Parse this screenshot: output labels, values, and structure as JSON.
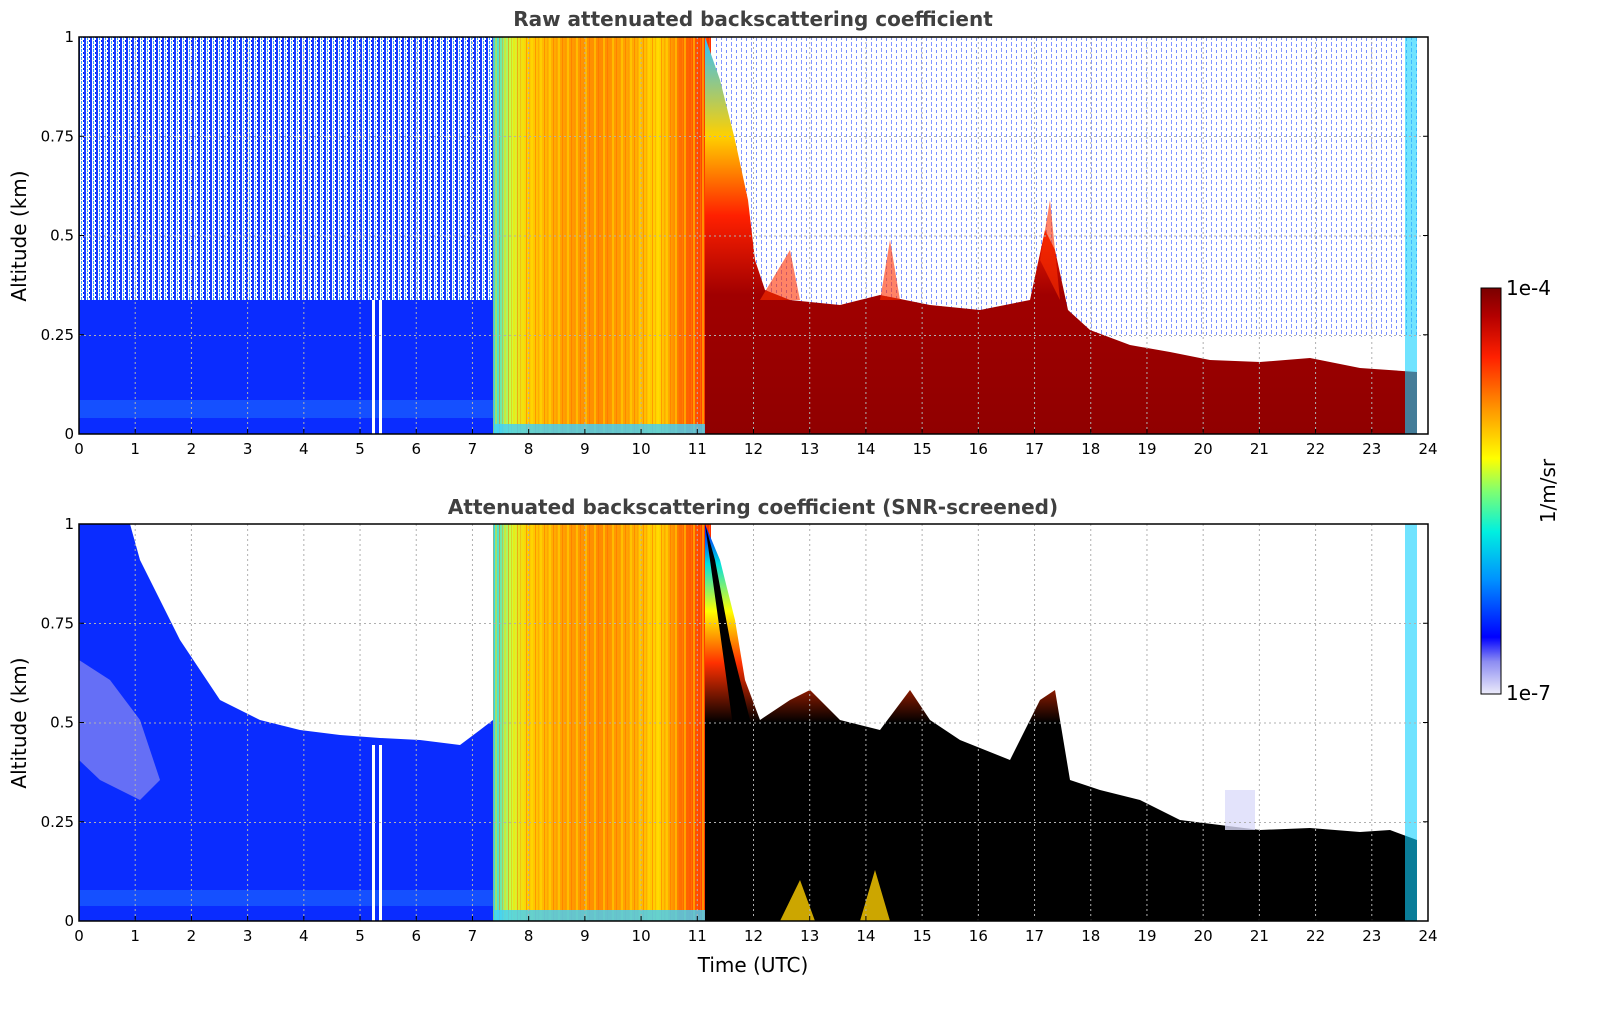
{
  "chart_data": [
    {
      "type": "heatmap",
      "title": "Raw attenuated backscattering coefficient",
      "xlabel": "",
      "ylabel": "Altitude (km)",
      "xlim": [
        0,
        24
      ],
      "ylim": [
        0,
        1
      ],
      "x_ticks": [
        "0",
        "1",
        "2",
        "3",
        "4",
        "5",
        "6",
        "7",
        "8",
        "9",
        "10",
        "11",
        "12",
        "13",
        "14",
        "15",
        "16",
        "17",
        "18",
        "19",
        "20",
        "21",
        "22",
        "23",
        "24"
      ],
      "y_ticks": [
        "0",
        "0.25",
        "0.5",
        "0.75",
        "1"
      ],
      "grid": true,
      "layer_top_km": [
        [
          0,
          0.3
        ],
        [
          7.4,
          0.3
        ],
        [
          7.45,
          1.0
        ],
        [
          11.2,
          1.0
        ],
        [
          11.5,
          0.85
        ],
        [
          11.8,
          0.6
        ],
        [
          12.0,
          0.45
        ],
        [
          12.5,
          0.33
        ],
        [
          13,
          0.32
        ],
        [
          14,
          0.32
        ],
        [
          15,
          0.3
        ],
        [
          16,
          0.3
        ],
        [
          17,
          0.4
        ],
        [
          17.3,
          0.55
        ],
        [
          17.5,
          0.28
        ],
        [
          18,
          0.22
        ],
        [
          19,
          0.2
        ],
        [
          20,
          0.16
        ],
        [
          21,
          0.15
        ],
        [
          22,
          0.16
        ],
        [
          23,
          0.13
        ],
        [
          23.8,
          0.12
        ]
      ]
    },
    {
      "type": "heatmap",
      "title": "Attenuated backscattering coefficient (SNR-screened)",
      "xlabel": "Time (UTC)",
      "ylabel": "Altitude (km)",
      "xlim": [
        0,
        24
      ],
      "ylim": [
        0,
        1
      ],
      "x_ticks": [
        "0",
        "1",
        "2",
        "3",
        "4",
        "5",
        "6",
        "7",
        "8",
        "9",
        "10",
        "11",
        "12",
        "13",
        "14",
        "15",
        "16",
        "17",
        "18",
        "19",
        "20",
        "21",
        "22",
        "23",
        "24"
      ],
      "y_ticks": [
        "0",
        "0.25",
        "0.5",
        "0.75",
        "1"
      ],
      "grid": true,
      "screened_top_km": [
        [
          0,
          1.0
        ],
        [
          1,
          1.0
        ],
        [
          1.5,
          0.75
        ],
        [
          2,
          0.62
        ],
        [
          2.5,
          0.52
        ],
        [
          3,
          0.48
        ],
        [
          4,
          0.46
        ],
        [
          5,
          0.44
        ],
        [
          6,
          0.44
        ],
        [
          7,
          0.43
        ],
        [
          7.4,
          0.5
        ]
      ]
    }
  ],
  "colorbar": {
    "label": "1/m/sr",
    "max_label": "1e-4",
    "min_label": "1e-7",
    "colors": [
      "#ecebfa",
      "#8c8cf2",
      "#0000ff",
      "#0090ff",
      "#00f0e0",
      "#80ff70",
      "#ffff00",
      "#ff9800",
      "#ff2000",
      "#a00000",
      "#7a0000"
    ]
  }
}
